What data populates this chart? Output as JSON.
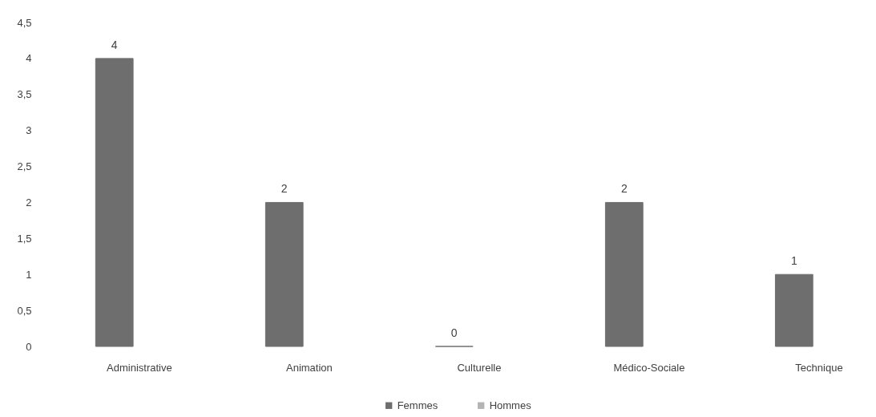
{
  "chart_data": {
    "type": "bar",
    "categories": [
      "Administrative",
      "Animation",
      "Culturelle",
      "Médico-Sociale",
      "Technique"
    ],
    "series": [
      {
        "name": "Femmes",
        "color": "#6e6e6e",
        "values": [
          4,
          2,
          0,
          2,
          1
        ]
      },
      {
        "name": "Hommes",
        "color": "#b4b4b4",
        "values": [
          null,
          null,
          null,
          null,
          null
        ]
      }
    ],
    "ylim": [
      0,
      4.5
    ],
    "yticks": [
      0,
      {
        "value": 0.5,
        "label": "0,5"
      },
      1,
      {
        "value": 1.5,
        "label": "1,5"
      },
      2,
      {
        "value": 2.5,
        "label": "2,5"
      },
      3,
      {
        "value": 3.5,
        "label": "3,5"
      },
      4,
      {
        "value": 4.5,
        "label": "4,5"
      }
    ],
    "data_labels": true,
    "legend": "bottom"
  }
}
